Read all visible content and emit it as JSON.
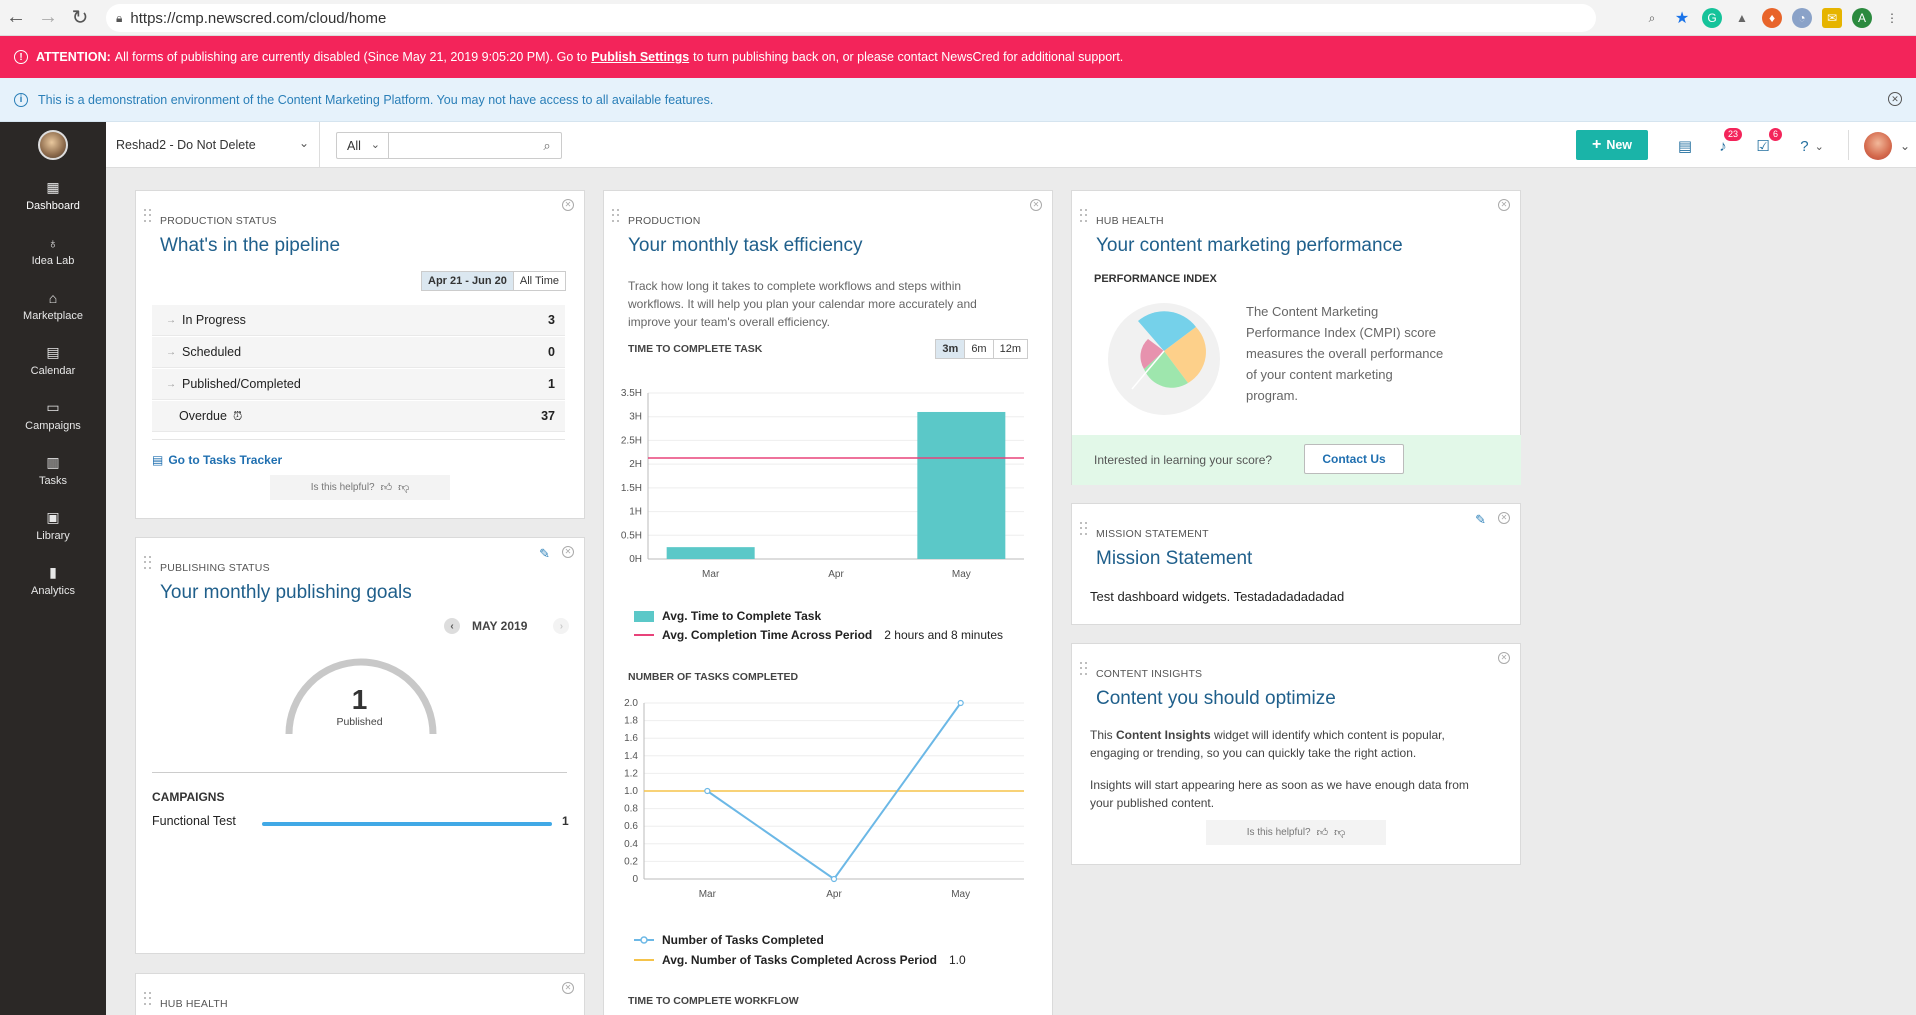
{
  "browser": {
    "url": "https://cmp.newscred.com/cloud/home"
  },
  "alert": {
    "label": "ATTENTION:",
    "text_before": "All forms of publishing are currently disabled (Since May 21, 2019 9:05:20 PM). Go to",
    "link": "Publish Settings",
    "text_after": "to turn publishing back on, or please contact NewsCred for additional support."
  },
  "demo_notice": "This is a demonstration environment of the Content Marketing Platform. You may not have access to all available features.",
  "header": {
    "account": "Reshad2 - Do Not Delete",
    "filter": "All",
    "search_value": "",
    "new_label": "New",
    "notifications_count": "23",
    "tasks_count": "6"
  },
  "sidebar": [
    {
      "label": "Dashboard",
      "icon": "dashboard-icon",
      "glyph": "▦"
    },
    {
      "label": "Idea Lab",
      "icon": "lightbulb-icon",
      "glyph": "♁"
    },
    {
      "label": "Marketplace",
      "icon": "store-icon",
      "glyph": "⌂"
    },
    {
      "label": "Calendar",
      "icon": "calendar-icon",
      "glyph": "▤"
    },
    {
      "label": "Campaigns",
      "icon": "campaign-icon",
      "glyph": "▭"
    },
    {
      "label": "Tasks",
      "icon": "clipboard-icon",
      "glyph": "▥"
    },
    {
      "label": "Library",
      "icon": "library-icon",
      "glyph": "▣"
    },
    {
      "label": "Analytics",
      "icon": "bar-chart-icon",
      "glyph": "▮"
    }
  ],
  "pipeline": {
    "eyebrow": "PRODUCTION STATUS",
    "title": "What's in the pipeline",
    "range_options": [
      "Apr 21 - Jun 20",
      "All Time"
    ],
    "rows": [
      {
        "label": "In Progress",
        "value": "3"
      },
      {
        "label": "Scheduled",
        "value": "0"
      },
      {
        "label": "Published/Completed",
        "value": "1"
      },
      {
        "label": "Overdue",
        "value": "37"
      }
    ],
    "tracker_link": "Go to Tasks Tracker",
    "helpful": "Is this helpful?"
  },
  "publishing": {
    "eyebrow": "PUBLISHING STATUS",
    "title": "Your monthly publishing goals",
    "month": "MAY 2019",
    "gauge_value": "1",
    "gauge_label": "Published",
    "campaigns_heading": "CAMPAIGNS",
    "campaign_name": "Functional Test",
    "campaign_value": "1"
  },
  "hub_health_lower": {
    "eyebrow": "HUB HEALTH"
  },
  "production": {
    "eyebrow": "PRODUCTION",
    "title": "Your monthly task efficiency",
    "description": "Track how long it takes to complete workflows and steps within workflows. It will help you plan your calendar more accurately and improve your team's overall efficiency.",
    "time_heading": "TIME TO COMPLETE TASK",
    "range_options": [
      "3m",
      "6m",
      "12m"
    ],
    "legend_avg_task": "Avg. Time to Complete Task",
    "legend_avg_period": "Avg. Completion Time Across Period",
    "avg_period_value": "2 hours and 8 minutes",
    "count_heading": "NUMBER OF TASKS COMPLETED",
    "legend_count": "Number of Tasks Completed",
    "legend_count_avg": "Avg. Number of Tasks Completed Across Period",
    "count_avg_value": "1.0",
    "workflow_heading": "TIME TO COMPLETE WORKFLOW"
  },
  "chart_data": [
    {
      "type": "bar",
      "categories": [
        "Mar",
        "Apr",
        "May"
      ],
      "values": [
        0.25,
        0,
        3.1
      ],
      "ylabel": "",
      "ylim": [
        0,
        3.5
      ],
      "yticks": [
        "0H",
        "0.5H",
        "1H",
        "1.5H",
        "2H",
        "2.5H",
        "3H",
        "3.5H"
      ],
      "reference_line": 2.13,
      "colors": {
        "bar": "#5bc8c8",
        "line": "#e8437a"
      }
    },
    {
      "type": "line",
      "categories": [
        "Mar",
        "Apr",
        "May"
      ],
      "values": [
        1.0,
        0,
        2.0
      ],
      "ylim": [
        0,
        2.0
      ],
      "yticks": [
        "0",
        "0.2",
        "0.4",
        "0.6",
        "0.8",
        "1.0",
        "1.2",
        "1.4",
        "1.6",
        "1.8",
        "2.0"
      ],
      "reference_line": 1.0,
      "colors": {
        "line": "#6cb8e6",
        "avg": "#f5c34a"
      }
    }
  ],
  "hub_health": {
    "eyebrow": "HUB HEALTH",
    "title": "Your content marketing performance",
    "subheading": "PERFORMANCE INDEX",
    "description": "The Content Marketing Performance Index (CMPI) score measures the overall performance of your content marketing program.",
    "cta_text": "Interested in learning your score?",
    "cta_button": "Contact Us"
  },
  "mission": {
    "eyebrow": "MISSION STATEMENT",
    "title": "Mission Statement",
    "text": "Test dashboard widgets. Testadadadadadad"
  },
  "insights": {
    "eyebrow": "CONTENT INSIGHTS",
    "title": "Content you should optimize",
    "text_pre": "This",
    "text_strong": "Content Insights",
    "text_post": "widget will identify which content is popular, engaging or trending, so you can quickly take the right action.",
    "text2": "Insights will start appearing here as soon as we have enough data from your published content.",
    "helpful": "Is this helpful?"
  }
}
